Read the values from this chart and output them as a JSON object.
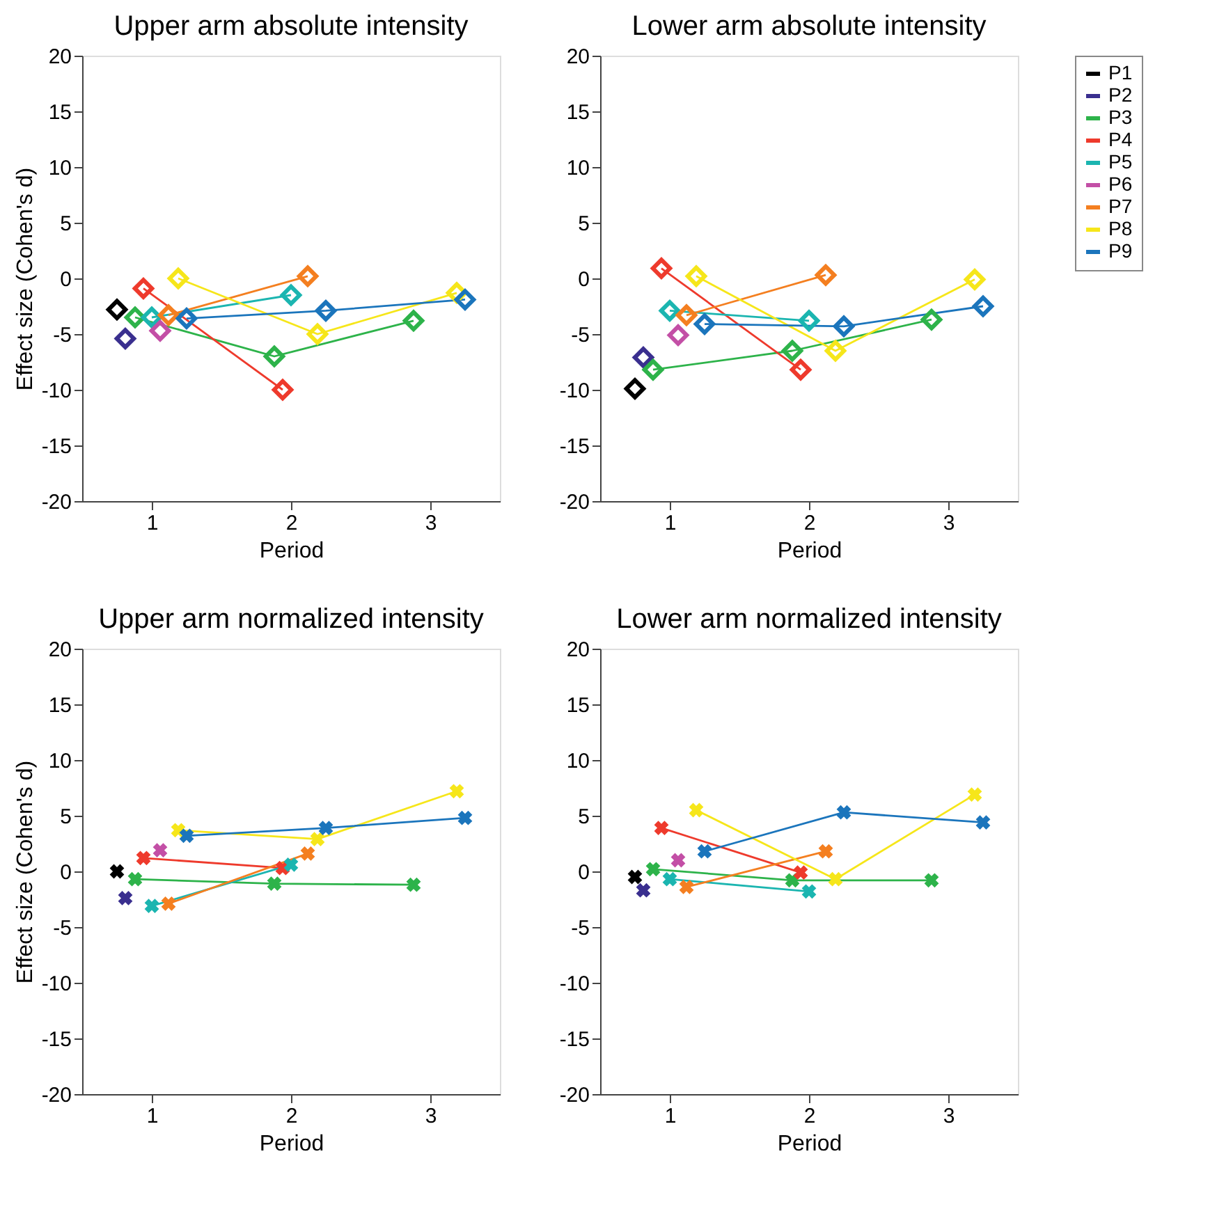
{
  "chart_data": [
    {
      "type": "line",
      "title": "Upper arm absolute intensity",
      "xlabel": "Period",
      "ylabel": "Effect size (Cohen's d)",
      "xlim": [
        0.5,
        3.5
      ],
      "xticks": [
        1,
        2,
        3
      ],
      "ylim": [
        -20,
        20
      ],
      "yticks": [
        -20,
        -15,
        -10,
        -5,
        0,
        5,
        10,
        15,
        20
      ],
      "marker": "diamond",
      "line_style": "solid",
      "grid": false,
      "legend": "top right",
      "series": [
        {
          "name": "P1",
          "color": "#000000",
          "x": [
            0.75
          ],
          "values": [
            -2.8
          ]
        },
        {
          "name": "P2",
          "color": "#3a2f8f",
          "x": [
            0.81
          ],
          "values": [
            -5.4
          ]
        },
        {
          "name": "P3",
          "color": "#2db34a",
          "x": [
            0.88,
            1.88,
            2.88
          ],
          "values": [
            -3.5,
            -7.0,
            -3.8
          ]
        },
        {
          "name": "P4",
          "color": "#ee3a2c",
          "x": [
            0.94,
            1.94
          ],
          "values": [
            -0.9,
            -10.0
          ]
        },
        {
          "name": "P5",
          "color": "#1bb5b0",
          "x": [
            1.0,
            2.0
          ],
          "values": [
            -3.5,
            -1.5
          ]
        },
        {
          "name": "P6",
          "color": "#c34fa6",
          "x": [
            1.06
          ],
          "values": [
            -4.7
          ]
        },
        {
          "name": "P7",
          "color": "#f47f20",
          "x": [
            1.12,
            2.12
          ],
          "values": [
            -3.3,
            0.2
          ]
        },
        {
          "name": "P8",
          "color": "#f6e61a",
          "x": [
            1.19,
            2.19,
            3.19
          ],
          "values": [
            0.0,
            -5.0,
            -1.3
          ]
        },
        {
          "name": "P9",
          "color": "#1b75bc",
          "x": [
            1.25,
            2.25,
            3.25
          ],
          "values": [
            -3.6,
            -2.9,
            -1.9
          ]
        }
      ]
    },
    {
      "type": "line",
      "title": "Lower arm absolute intensity",
      "xlabel": "Period",
      "xlim": [
        0.5,
        3.5
      ],
      "xticks": [
        1,
        2,
        3
      ],
      "ylim": [
        -20,
        20
      ],
      "yticks": [
        -20,
        -15,
        -10,
        -5,
        0,
        5,
        10,
        15,
        20
      ],
      "marker": "diamond",
      "line_style": "solid",
      "grid": false,
      "legend": "top right",
      "series": [
        {
          "name": "P1",
          "color": "#000000",
          "x": [
            0.75
          ],
          "values": [
            -9.9
          ]
        },
        {
          "name": "P2",
          "color": "#3a2f8f",
          "x": [
            0.81
          ],
          "values": [
            -7.1
          ]
        },
        {
          "name": "P3",
          "color": "#2db34a",
          "x": [
            0.88,
            1.88,
            2.88
          ],
          "values": [
            -8.2,
            -6.5,
            -3.7
          ]
        },
        {
          "name": "P4",
          "color": "#ee3a2c",
          "x": [
            0.94,
            1.94
          ],
          "values": [
            0.9,
            -8.2
          ]
        },
        {
          "name": "P5",
          "color": "#1bb5b0",
          "x": [
            1.0,
            2.0
          ],
          "values": [
            -2.9,
            -3.8
          ]
        },
        {
          "name": "P6",
          "color": "#c34fa6",
          "x": [
            1.06
          ],
          "values": [
            -5.1
          ]
        },
        {
          "name": "P7",
          "color": "#f47f20",
          "x": [
            1.12,
            2.12
          ],
          "values": [
            -3.3,
            0.3
          ]
        },
        {
          "name": "P8",
          "color": "#f6e61a",
          "x": [
            1.19,
            2.19,
            3.19
          ],
          "values": [
            0.2,
            -6.5,
            -0.1
          ]
        },
        {
          "name": "P9",
          "color": "#1b75bc",
          "x": [
            1.25,
            2.25,
            3.25
          ],
          "values": [
            -4.1,
            -4.3,
            -2.5
          ]
        }
      ]
    },
    {
      "type": "line",
      "title": "Upper arm normalized intensity",
      "xlabel": "Period",
      "ylabel": "Effect size (Cohen's d)",
      "xlim": [
        0.5,
        3.5
      ],
      "xticks": [
        1,
        2,
        3
      ],
      "ylim": [
        -20,
        20
      ],
      "yticks": [
        -20,
        -15,
        -10,
        -5,
        0,
        5,
        10,
        15,
        20
      ],
      "marker": "cross",
      "line_style": "solid",
      "grid": false,
      "legend": "top right",
      "series": [
        {
          "name": "P1",
          "color": "#000000",
          "x": [
            0.75
          ],
          "values": [
            0.0
          ]
        },
        {
          "name": "P2",
          "color": "#3a2f8f",
          "x": [
            0.81
          ],
          "values": [
            -2.4
          ]
        },
        {
          "name": "P3",
          "color": "#2db34a",
          "x": [
            0.88,
            1.88,
            2.88
          ],
          "values": [
            -0.7,
            -1.1,
            -1.2
          ]
        },
        {
          "name": "P4",
          "color": "#ee3a2c",
          "x": [
            0.94,
            1.94
          ],
          "values": [
            1.2,
            0.3
          ]
        },
        {
          "name": "P5",
          "color": "#1bb5b0",
          "x": [
            1.0,
            2.0
          ],
          "values": [
            -3.1,
            0.6
          ]
        },
        {
          "name": "P6",
          "color": "#c34fa6",
          "x": [
            1.06
          ],
          "values": [
            1.9
          ]
        },
        {
          "name": "P7",
          "color": "#f47f20",
          "x": [
            1.12,
            2.12
          ],
          "values": [
            -2.9,
            1.6
          ]
        },
        {
          "name": "P8",
          "color": "#f6e61a",
          "x": [
            1.19,
            2.19,
            3.19
          ],
          "values": [
            3.7,
            2.9,
            7.2
          ]
        },
        {
          "name": "P9",
          "color": "#1b75bc",
          "x": [
            1.25,
            2.25,
            3.25
          ],
          "values": [
            3.2,
            3.9,
            4.8
          ]
        }
      ]
    },
    {
      "type": "line",
      "title": "Lower arm normalized intensity",
      "xlabel": "Period",
      "xlim": [
        0.5,
        3.5
      ],
      "xticks": [
        1,
        2,
        3
      ],
      "ylim": [
        -20,
        20
      ],
      "yticks": [
        -20,
        -15,
        -10,
        -5,
        0,
        5,
        10,
        15,
        20
      ],
      "marker": "cross",
      "line_style": "solid",
      "grid": false,
      "legend": "top right",
      "series": [
        {
          "name": "P1",
          "color": "#000000",
          "x": [
            0.75
          ],
          "values": [
            -0.5
          ]
        },
        {
          "name": "P2",
          "color": "#3a2f8f",
          "x": [
            0.81
          ],
          "values": [
            -1.7
          ]
        },
        {
          "name": "P3",
          "color": "#2db34a",
          "x": [
            0.88,
            1.88,
            2.88
          ],
          "values": [
            0.2,
            -0.8,
            -0.8
          ]
        },
        {
          "name": "P4",
          "color": "#ee3a2c",
          "x": [
            0.94,
            1.94
          ],
          "values": [
            3.9,
            -0.1
          ]
        },
        {
          "name": "P5",
          "color": "#1bb5b0",
          "x": [
            1.0,
            2.0
          ],
          "values": [
            -0.7,
            -1.8
          ]
        },
        {
          "name": "P6",
          "color": "#c34fa6",
          "x": [
            1.06
          ],
          "values": [
            1.0
          ]
        },
        {
          "name": "P7",
          "color": "#f47f20",
          "x": [
            1.12,
            2.12
          ],
          "values": [
            -1.4,
            1.8
          ]
        },
        {
          "name": "P8",
          "color": "#f6e61a",
          "x": [
            1.19,
            2.19,
            3.19
          ],
          "values": [
            5.5,
            -0.7,
            6.9
          ]
        },
        {
          "name": "P9",
          "color": "#1b75bc",
          "x": [
            1.25,
            2.25,
            3.25
          ],
          "values": [
            1.8,
            5.3,
            4.4
          ]
        }
      ]
    }
  ]
}
